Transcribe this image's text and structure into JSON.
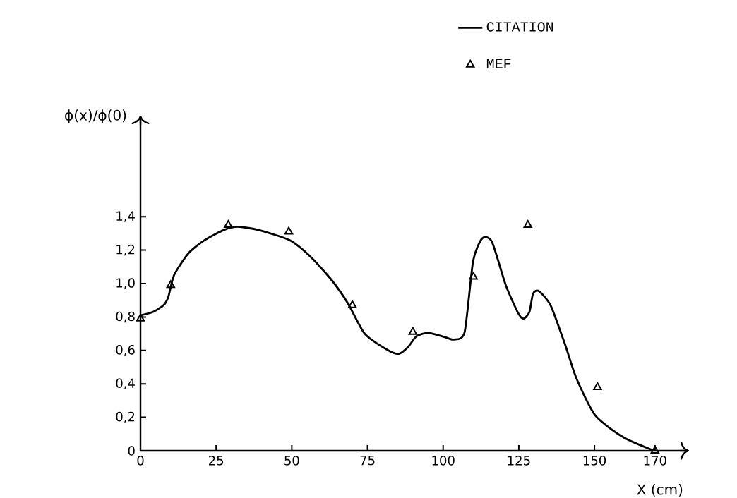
{
  "chart_data": {
    "type": "line",
    "xlabel": "X (cm)",
    "ylabel": "ϕ(x)/ϕ(0)",
    "xlim": [
      0,
      181
    ],
    "ylim": [
      0,
      2.0
    ],
    "xticks": [
      0,
      25,
      50,
      75,
      100,
      125,
      150,
      170
    ],
    "yticks": [
      0,
      {
        "value": 0.2,
        "label": "0,2"
      },
      {
        "value": 0.4,
        "label": "0,4"
      },
      {
        "value": 0.6,
        "label": "0,6"
      },
      {
        "value": 0.8,
        "label": "0,8"
      },
      {
        "value": 1.0,
        "label": "1,0"
      },
      {
        "value": 1.2,
        "label": "1,2"
      },
      {
        "value": 1.4,
        "label": "1,4"
      }
    ],
    "legend": "top right",
    "grid": false,
    "series": [
      {
        "name": "CITATION",
        "marker": "none",
        "line_style": "solid",
        "color": "#000000",
        "x": [
          0,
          4.1,
          7.6,
          9.2,
          11.1,
          15.8,
          21.2,
          27.5,
          32.1,
          39.1,
          49.2,
          56.2,
          63.2,
          68.6,
          74.1,
          81.9,
          85.4,
          88.4,
          91.2,
          95.1,
          100.5,
          103.6,
          107.1,
          109.9,
          112.9,
          116.1,
          120.7,
          124.6,
          126.5,
          128.5,
          129.7,
          131.6,
          135.5,
          140.2,
          144.1,
          150.3,
          159.6,
          169.7
        ],
        "values": [
          0.81,
          0.83,
          0.87,
          0.92,
          1.05,
          1.18,
          1.26,
          1.32,
          1.34,
          1.32,
          1.26,
          1.16,
          1.02,
          0.88,
          0.7,
          0.6,
          0.58,
          0.62,
          0.685,
          0.705,
          0.68,
          0.665,
          0.71,
          1.135,
          1.27,
          1.25,
          0.99,
          0.83,
          0.79,
          0.83,
          0.94,
          0.955,
          0.87,
          0.64,
          0.43,
          0.21,
          0.08,
          0
        ]
      },
      {
        "name": "MEF",
        "type": "scatter",
        "marker": "triangle",
        "color": "#000000",
        "x": [
          0,
          10,
          29,
          49,
          70,
          90,
          110,
          128,
          151,
          170
        ],
        "values": [
          0.79,
          0.99,
          1.35,
          1.31,
          0.87,
          0.71,
          1.04,
          1.35,
          0.38,
          0
        ]
      }
    ]
  }
}
